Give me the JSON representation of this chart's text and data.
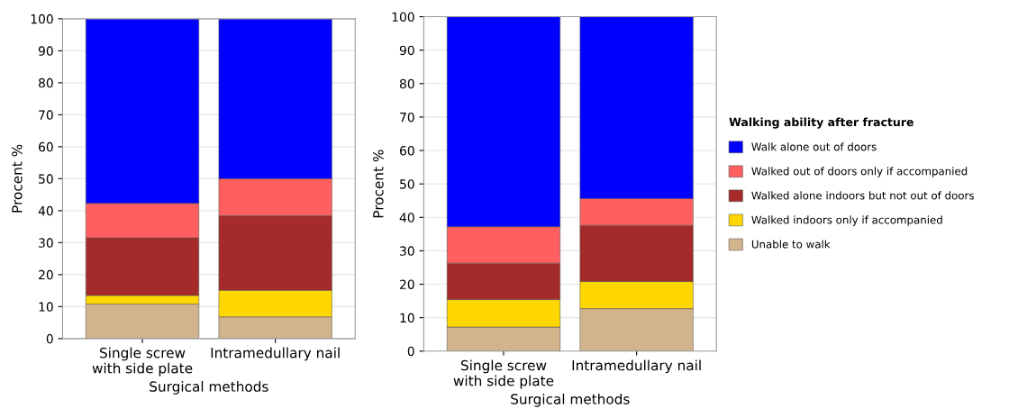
{
  "chart_data": [
    {
      "type": "bar",
      "stacked": true,
      "xlabel": "Surgical methods",
      "ylabel": "Procent %",
      "categories": [
        "Single screw\nwith side plate",
        "Intramedullary nail"
      ],
      "ylim": [
        0,
        100
      ],
      "yticks": [
        0,
        10,
        20,
        30,
        40,
        50,
        60,
        70,
        80,
        90,
        100
      ],
      "grid": "y",
      "legend": false,
      "series": [
        {
          "color": "#d2b48c",
          "values": [
            10.8,
            6.8
          ]
        },
        {
          "color": "#ffd700",
          "values": [
            2.7,
            8.3
          ]
        },
        {
          "color": "#a52a2a",
          "values": [
            18.0,
            23.3
          ]
        },
        {
          "color": "#ff5f5f",
          "values": [
            10.8,
            11.6
          ]
        },
        {
          "color": "#0000ff",
          "values": [
            57.7,
            50.0
          ]
        }
      ]
    },
    {
      "type": "bar",
      "stacked": true,
      "xlabel": "Surgical methods",
      "ylabel": "Procent %",
      "categories": [
        "Single screw\nwith side plate",
        "Intramedullary nail"
      ],
      "ylim": [
        0,
        100
      ],
      "yticks": [
        0,
        10,
        20,
        30,
        40,
        50,
        60,
        70,
        80,
        90,
        100
      ],
      "grid": "y",
      "legend": "right",
      "legend_title": "Walking ability after fracture",
      "series": [
        {
          "name": "Unable to walk",
          "color": "#d2b48c",
          "values": [
            7.2,
            12.7
          ]
        },
        {
          "name": "Walked indoors only if accompanied",
          "color": "#ffd700",
          "values": [
            8.2,
            8.1
          ]
        },
        {
          "name": "Walked alone indoors but not out of doors",
          "color": "#a52a2a",
          "values": [
            10.9,
            16.8
          ]
        },
        {
          "name": "Walked out of doors only if accompanied",
          "color": "#ff5f5f",
          "values": [
            10.9,
            8.0
          ]
        },
        {
          "name": "Walk alone out of doors",
          "color": "#0000ff",
          "values": [
            62.8,
            54.4
          ]
        }
      ]
    }
  ]
}
